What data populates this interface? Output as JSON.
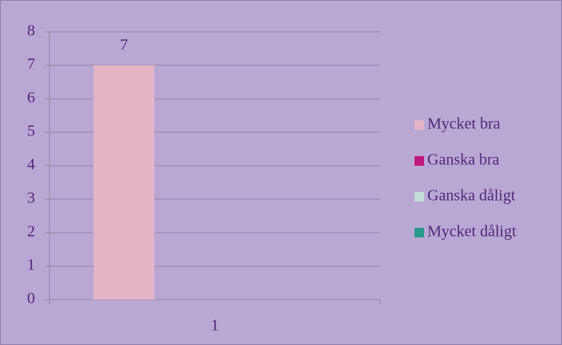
{
  "chart_data": {
    "type": "bar",
    "categories": [
      "1"
    ],
    "series": [
      {
        "name": "Mycket bra",
        "color": "#e5b5c6",
        "values": [
          7
        ]
      },
      {
        "name": "Ganska bra",
        "color": "#c0187a",
        "values": [
          null
        ]
      },
      {
        "name": "Ganska dåligt",
        "color": "#c3ddd8",
        "values": [
          null
        ]
      },
      {
        "name": "Mycket dåligt",
        "color": "#2a9a8c",
        "values": [
          null
        ]
      }
    ],
    "ylim": [
      0,
      8
    ],
    "yticks": [
      0,
      1,
      2,
      3,
      4,
      5,
      6,
      7,
      8
    ],
    "grid": true,
    "legend": "right",
    "data_labels": true
  }
}
